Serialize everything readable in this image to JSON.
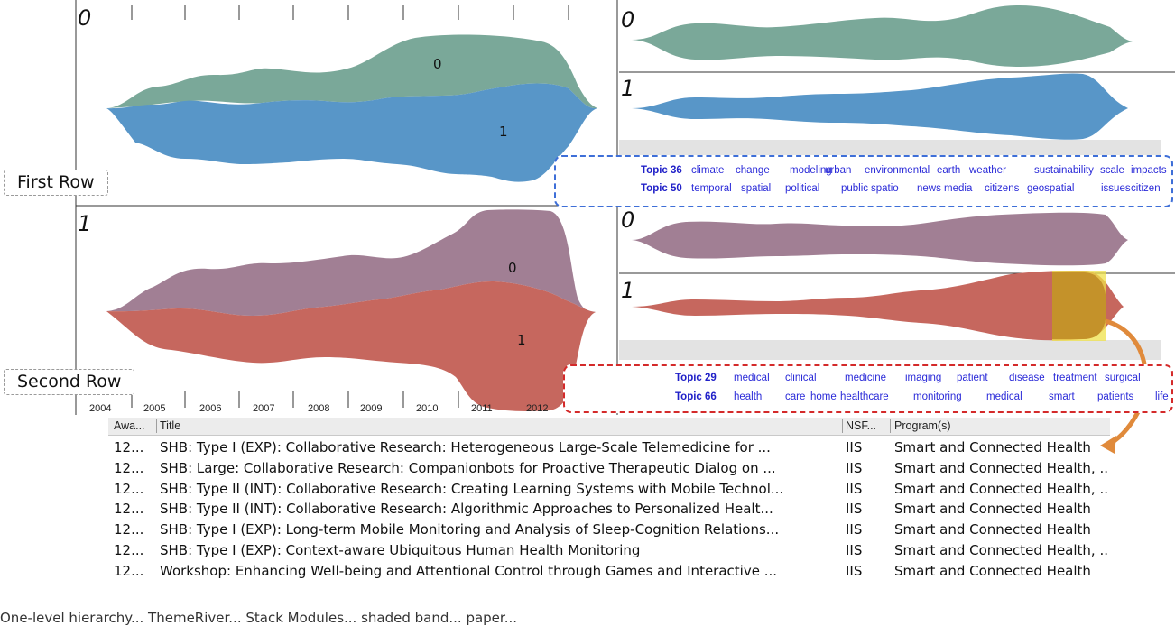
{
  "left_panels": {
    "panel_top": {
      "label": "0",
      "layer0_label": "0",
      "layer1_label": "1"
    },
    "panel_bottom": {
      "label": "1",
      "layer0_label": "0",
      "layer1_label": "1"
    },
    "years": [
      "2004",
      "2005",
      "2006",
      "2007",
      "2008",
      "2009",
      "2010",
      "2011",
      "2012"
    ]
  },
  "right_panels": {
    "first_row": {
      "top_label": "0",
      "bottom_label": "1"
    },
    "second_row": {
      "top_label": "0",
      "bottom_label": "1"
    }
  },
  "row_labels": {
    "first": "First Row",
    "second": "Second Row"
  },
  "legends": {
    "first": {
      "topic_a": "Topic 36",
      "words_a": [
        "climate",
        "change",
        "modeling",
        "urban",
        "environmental",
        "earth",
        "weather",
        "sustainability",
        "scale",
        "impacts"
      ],
      "topic_b": "Topic 50",
      "words_b": [
        "temporal",
        "spatial",
        "political",
        "public",
        "spatio",
        "news media",
        "citizens",
        "geospatial",
        "issues",
        "citizen"
      ]
    },
    "second": {
      "topic_a": "Topic 29",
      "words_a": [
        "medical",
        "clinical",
        "medicine",
        "imaging",
        "patient",
        "disease",
        "treatment",
        "surgical"
      ],
      "topic_b": "Topic 66",
      "words_b": [
        "health",
        "care",
        "home",
        "healthcare",
        "monitoring",
        "medical",
        "smart",
        "patients",
        "life"
      ]
    }
  },
  "colors": {
    "green": "#7aa899",
    "blue": "#5896c8",
    "mauve": "#a17f94",
    "red": "#c6675e",
    "highlight": "#c4922a",
    "first_box": "#3e6fd8",
    "second_box": "#d42a2a",
    "arrow": "#e08a3b"
  },
  "table": {
    "headers": [
      "Awa...",
      "Title",
      "NSF...",
      "Program(s)"
    ],
    "rows": [
      {
        "award": "12...",
        "title": "SHB: Type I (EXP): Collaborative Research: Heterogeneous Large-Scale Telemedicine for ...",
        "nsf": "IIS",
        "program": "Smart and Connected Health"
      },
      {
        "award": "12...",
        "title": "SHB: Large: Collaborative Research: Companionbots for Proactive Therapeutic Dialog on ...",
        "nsf": "IIS",
        "program": "Smart and Connected Health, .."
      },
      {
        "award": "12...",
        "title": "SHB: Type II (INT): Collaborative Research: Creating Learning Systems with Mobile Technol...",
        "nsf": "IIS",
        "program": "Smart and Connected Health, .."
      },
      {
        "award": "12...",
        "title": "SHB: Type II (INT): Collaborative Research: Algorithmic Approaches to Personalized Healt...",
        "nsf": "IIS",
        "program": "Smart and Connected Health"
      },
      {
        "award": "12...",
        "title": "SHB: Type I (EXP): Long-term Mobile Monitoring and Analysis of Sleep-Cognition Relations...",
        "nsf": "IIS",
        "program": "Smart and Connected Health"
      },
      {
        "award": "12...",
        "title": "SHB: Type I (EXP): Context-aware Ubiquitous Human Health Monitoring",
        "nsf": "IIS",
        "program": "Smart and Connected Health, .."
      },
      {
        "award": "12...",
        "title": "Workshop: Enhancing Well-being and Attentional Control through Games and Interactive ...",
        "nsf": "IIS",
        "program": "Smart and Connected Health"
      }
    ]
  },
  "caption": "One-level hierarchy... ThemeRiver... Stack Modules... shaded band... paper..."
}
